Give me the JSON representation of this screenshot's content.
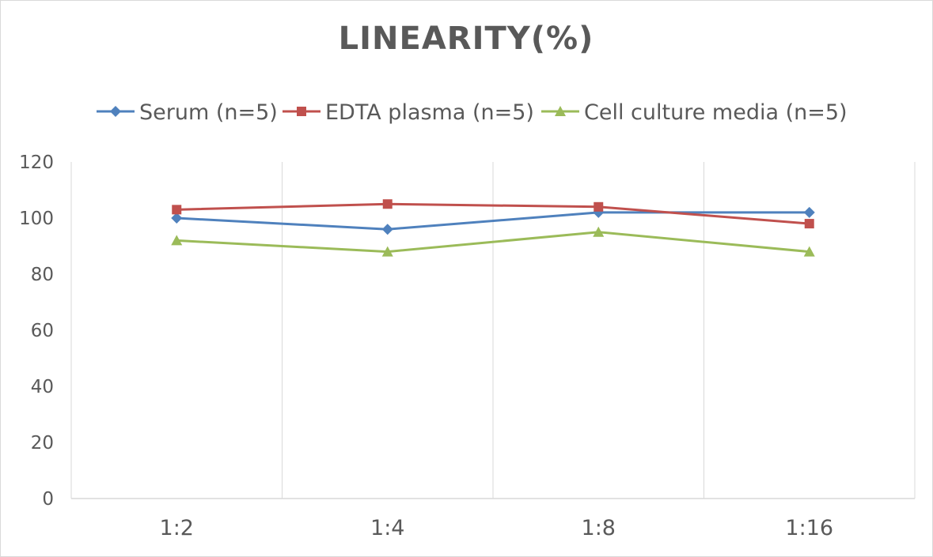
{
  "chart_data": {
    "type": "line",
    "title": "LINEARITY(%)",
    "xlabel": "",
    "ylabel": "",
    "categories": [
      "1:2",
      "1:4",
      "1:8",
      "1:16"
    ],
    "ylim": [
      0,
      120
    ],
    "yticks": [
      0,
      20,
      40,
      60,
      80,
      100,
      120
    ],
    "grid": "vertical",
    "legend_position": "top",
    "series": [
      {
        "name": "Serum (n=5)",
        "values": [
          100,
          96,
          102,
          102
        ],
        "color": "#4f81bd",
        "marker": "diamond"
      },
      {
        "name": "EDTA plasma (n=5)",
        "values": [
          103,
          105,
          104,
          98
        ],
        "color": "#c0504d",
        "marker": "square"
      },
      {
        "name": "Cell culture media (n=5)",
        "values": [
          92,
          88,
          95,
          88
        ],
        "color": "#9bbb59",
        "marker": "triangle"
      }
    ]
  }
}
